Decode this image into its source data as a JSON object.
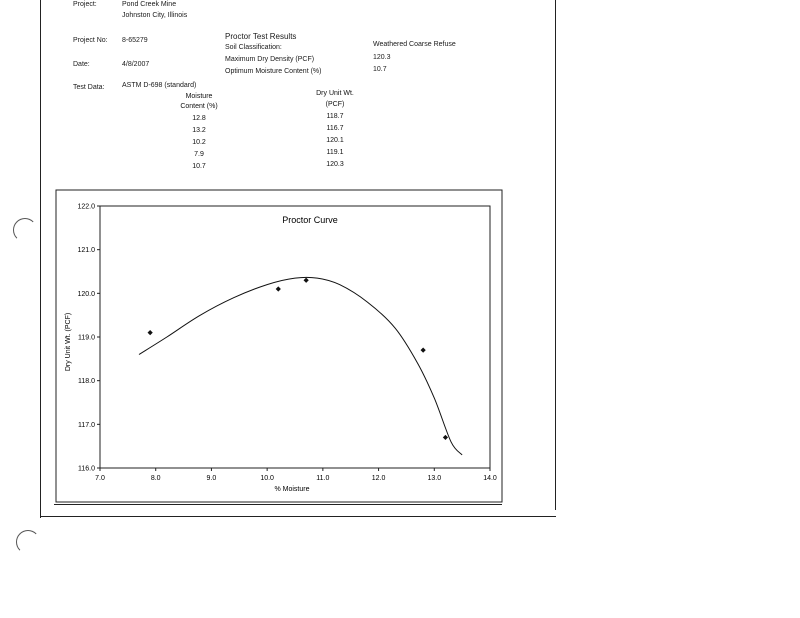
{
  "project": {
    "project_label": "Project:",
    "project_name": "Pond Creek Mine",
    "project_location": "Johnston City, Illinois",
    "project_no_label": "Project No:",
    "project_no": "8-65279",
    "date_label": "Date:",
    "date": "4/8/2007",
    "test_data_label": "Test Data:",
    "test_method": "ASTM D-698  (standard)"
  },
  "results": {
    "title": "Proctor Test  Results",
    "soil_class_label": "Soil Classification:",
    "soil_class_value": "Weathered Coarse Refuse",
    "max_density_label": "Maximum Dry Density (PCF)",
    "max_density_value": "120.3",
    "opt_moisture_label": "Optimum Moisture Content (%)",
    "opt_moisture_value": "10.7"
  },
  "table": {
    "col1_header_1": "Moisture",
    "col1_header_2": "Content (%)",
    "col2_header_1": "Dry Unit Wt.",
    "col2_header_2": "(PCF)",
    "rows": [
      {
        "moisture": "12.8",
        "dry": "118.7"
      },
      {
        "moisture": "13.2",
        "dry": "116.7"
      },
      {
        "moisture": "10.2",
        "dry": "120.1"
      },
      {
        "moisture": "7.9",
        "dry": "119.1"
      },
      {
        "moisture": "10.7",
        "dry": "120.3"
      }
    ]
  },
  "chart_data": {
    "type": "scatter",
    "title": "Proctor Curve",
    "xlabel": "% Moisture",
    "ylabel": "Dry Unit Wt. (PCF)",
    "xlim": [
      7.0,
      14.0
    ],
    "ylim": [
      116.0,
      122.0
    ],
    "x_ticks": [
      "7.0",
      "8.0",
      "9.0",
      "10.0",
      "11.0",
      "12.0",
      "13.0",
      "14.0"
    ],
    "y_ticks": [
      "116.0",
      "117.0",
      "118.0",
      "119.0",
      "120.0",
      "121.0",
      "122.0"
    ],
    "grid": false,
    "points": [
      {
        "x": 7.9,
        "y": 119.1
      },
      {
        "x": 10.2,
        "y": 120.1
      },
      {
        "x": 10.7,
        "y": 120.3
      },
      {
        "x": 12.8,
        "y": 118.7
      },
      {
        "x": 13.2,
        "y": 116.7
      }
    ],
    "curve": [
      {
        "x": 7.7,
        "y": 118.6
      },
      {
        "x": 8.2,
        "y": 119.0
      },
      {
        "x": 8.8,
        "y": 119.5
      },
      {
        "x": 9.4,
        "y": 119.9
      },
      {
        "x": 10.0,
        "y": 120.2
      },
      {
        "x": 10.5,
        "y": 120.35
      },
      {
        "x": 10.9,
        "y": 120.35
      },
      {
        "x": 11.3,
        "y": 120.2
      },
      {
        "x": 11.8,
        "y": 119.8
      },
      {
        "x": 12.3,
        "y": 119.2
      },
      {
        "x": 12.7,
        "y": 118.4
      },
      {
        "x": 13.0,
        "y": 117.6
      },
      {
        "x": 13.3,
        "y": 116.6
      },
      {
        "x": 13.5,
        "y": 116.3
      }
    ]
  }
}
